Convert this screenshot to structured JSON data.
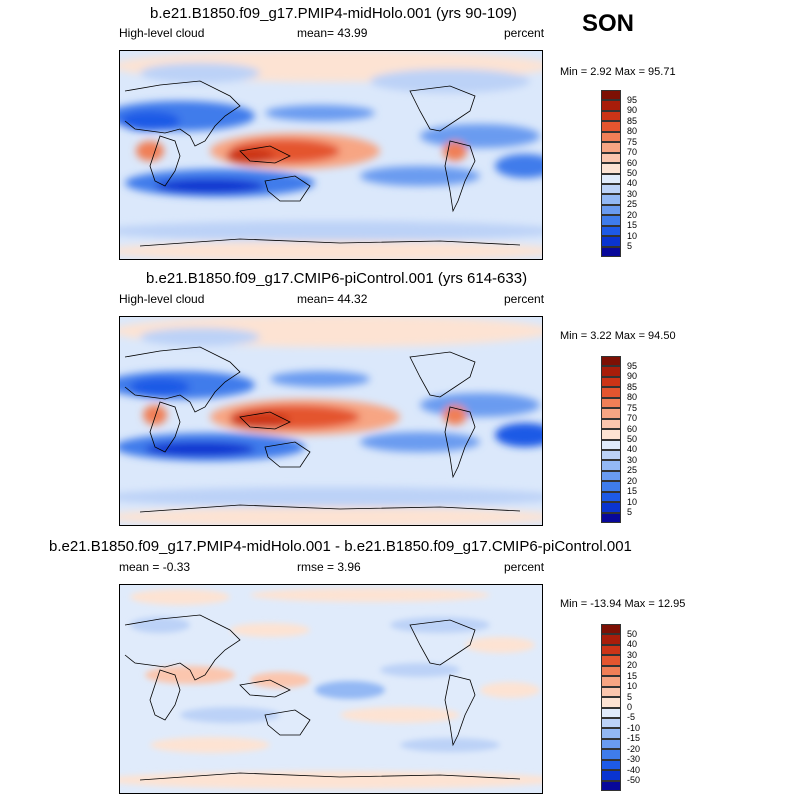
{
  "season": "SON",
  "chart_data": [
    {
      "type": "heatmap",
      "title": "b.e21.B1850.f09_g17.PMIP4-midHolo.001 (yrs 90-109)",
      "left_label": "High-level cloud",
      "stat_text": "mean=  43.99",
      "units": "percent",
      "minmax_text": "Min =   2.92 Max =  95.71",
      "colorbar": {
        "levels": [
          "5",
          "10",
          "15",
          "20",
          "25",
          "30",
          "40",
          "50",
          "60",
          "70",
          "75",
          "80",
          "85",
          "90",
          "95"
        ],
        "colors": [
          "#08089a",
          "#0a34d0",
          "#1e5ae6",
          "#3f7ceb",
          "#6a9bf0",
          "#93b8f4",
          "#bcd2f7",
          "#e0ebfb",
          "#fde3d3",
          "#fbc6ae",
          "#f7a583",
          "#f07f57",
          "#e4552f",
          "#cc3417",
          "#a81d0a",
          "#7d1004"
        ]
      }
    },
    {
      "type": "heatmap",
      "title": "b.e21.B1850.f09_g17.CMIP6-piControl.001 (yrs 614-633)",
      "left_label": "High-level cloud",
      "stat_text": "mean=  44.32",
      "units": "percent",
      "minmax_text": "Min =   3.22 Max =  94.50",
      "colorbar": {
        "levels": [
          "5",
          "10",
          "15",
          "20",
          "25",
          "30",
          "40",
          "50",
          "60",
          "70",
          "75",
          "80",
          "85",
          "90",
          "95"
        ],
        "colors": [
          "#08089a",
          "#0a34d0",
          "#1e5ae6",
          "#3f7ceb",
          "#6a9bf0",
          "#93b8f4",
          "#bcd2f7",
          "#e0ebfb",
          "#fde3d3",
          "#fbc6ae",
          "#f7a583",
          "#f07f57",
          "#e4552f",
          "#cc3417",
          "#a81d0a",
          "#7d1004"
        ]
      }
    },
    {
      "type": "heatmap",
      "title": "b.e21.B1850.f09_g17.PMIP4-midHolo.001 - b.e21.B1850.f09_g17.CMIP6-piControl.001",
      "left_label": "mean =  -0.33",
      "stat_text": "rmse =   3.96",
      "units": "percent",
      "minmax_text": "Min = -13.94 Max =  12.95",
      "colorbar": {
        "levels": [
          "-50",
          "-40",
          "-30",
          "-20",
          "-15",
          "-10",
          "-5",
          "0",
          "5",
          "10",
          "15",
          "20",
          "30",
          "40",
          "50"
        ],
        "colors": [
          "#08089a",
          "#0a34d0",
          "#1e5ae6",
          "#3f7ceb",
          "#6a9bf0",
          "#93b8f4",
          "#bcd2f7",
          "#e0ebfb",
          "#fde3d3",
          "#fbc6ae",
          "#f7a583",
          "#f07f57",
          "#e4552f",
          "#cc3417",
          "#a81d0a",
          "#7d1004"
        ]
      }
    }
  ]
}
